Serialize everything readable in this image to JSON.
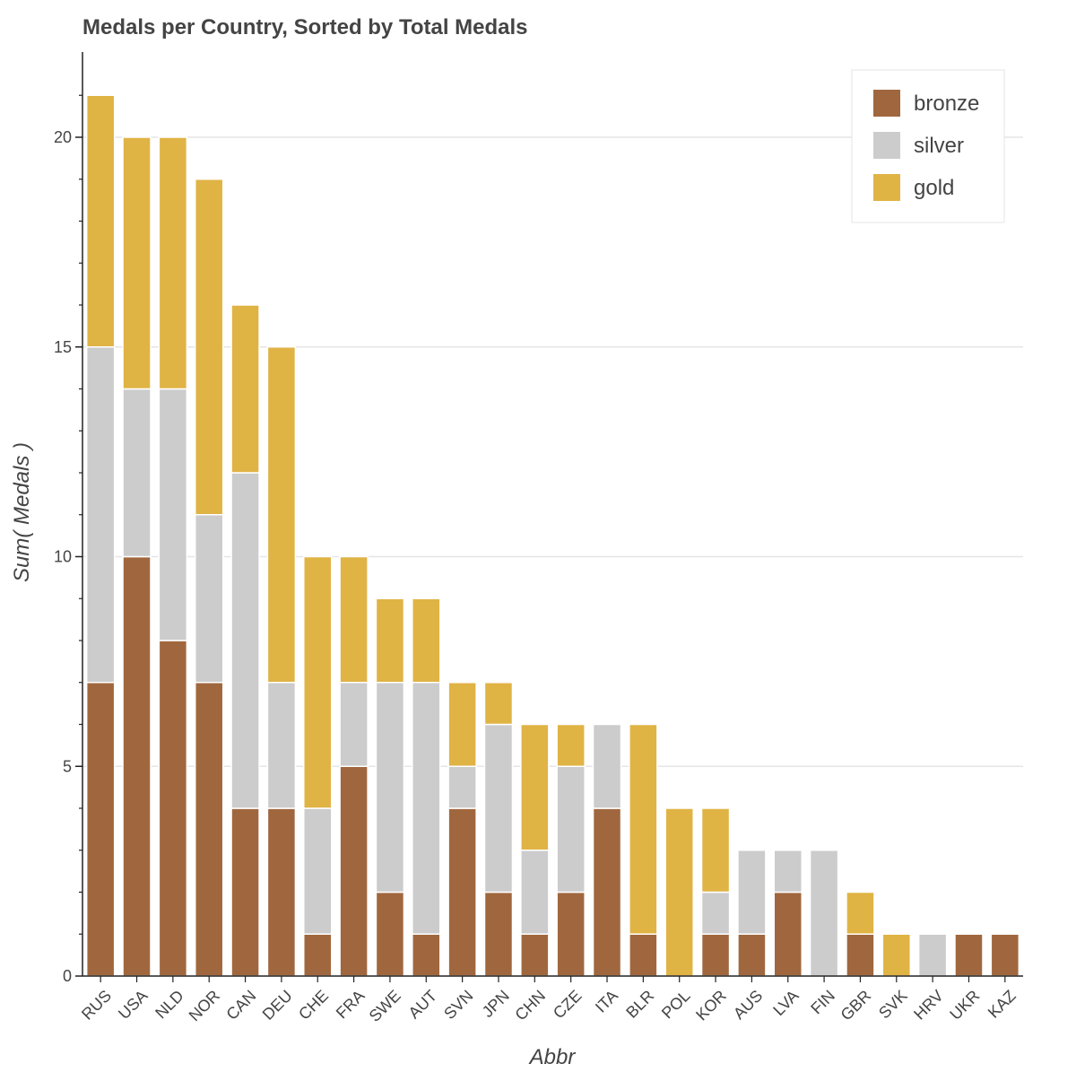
{
  "chart_data": {
    "type": "bar",
    "stacked": true,
    "title": "Medals per Country, Sorted by Total Medals",
    "xlabel": "Abbr",
    "ylabel": "Sum( Medals )",
    "ylim": [
      0,
      22
    ],
    "yticks": [
      "0",
      "5",
      "10",
      "15",
      "20"
    ],
    "grid": true,
    "legend_position": "top-right",
    "categories": [
      "RUS",
      "USA",
      "NLD",
      "NOR",
      "CAN",
      "DEU",
      "CHE",
      "FRA",
      "SWE",
      "AUT",
      "SVN",
      "JPN",
      "CHN",
      "CZE",
      "ITA",
      "BLR",
      "POL",
      "KOR",
      "AUS",
      "LVA",
      "FIN",
      "GBR",
      "SVK",
      "HRV",
      "UKR",
      "KAZ"
    ],
    "series": [
      {
        "name": "bronze",
        "color": "#A0673E",
        "values": [
          7,
          10,
          8,
          7,
          4,
          4,
          1,
          5,
          2,
          1,
          4,
          2,
          1,
          2,
          4,
          1,
          0,
          1,
          1,
          2,
          0,
          1,
          0,
          0,
          1,
          1
        ]
      },
      {
        "name": "silver",
        "color": "#CCCCCC",
        "values": [
          8,
          4,
          6,
          4,
          8,
          3,
          3,
          2,
          5,
          6,
          1,
          4,
          2,
          3,
          2,
          0,
          0,
          1,
          2,
          1,
          3,
          0,
          0,
          1,
          0,
          0
        ]
      },
      {
        "name": "gold",
        "color": "#E0B345",
        "values": [
          6,
          6,
          6,
          8,
          4,
          8,
          6,
          3,
          2,
          2,
          2,
          1,
          3,
          1,
          0,
          5,
          4,
          2,
          0,
          0,
          0,
          1,
          1,
          0,
          0,
          0
        ]
      }
    ]
  }
}
